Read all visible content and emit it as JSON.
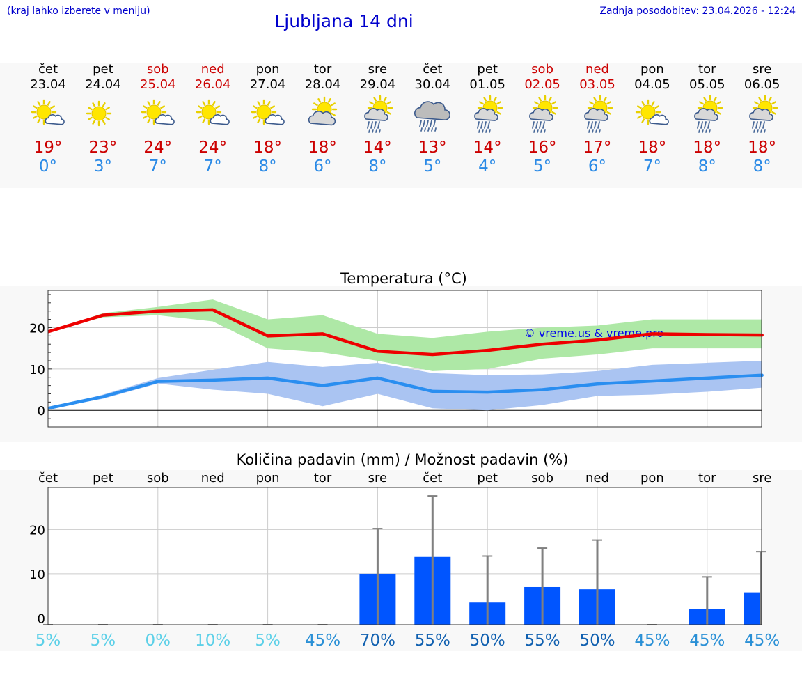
{
  "header": {
    "hint": "(kraj lahko izberete v meniju)",
    "title": "Ljubljana 14 dni",
    "updated": "Zadnja posodobitev: 23.04.2026 - 12:24"
  },
  "days": [
    {
      "name": "čet",
      "date": "23.04",
      "weekend": false,
      "icon": "sun-cloud-icon",
      "max": "19°",
      "min": "0°"
    },
    {
      "name": "pet",
      "date": "24.04",
      "weekend": false,
      "icon": "sun-icon",
      "max": "23°",
      "min": "3°"
    },
    {
      "name": "sob",
      "date": "25.04",
      "weekend": true,
      "icon": "sun-cloud-icon",
      "max": "24°",
      "min": "7°"
    },
    {
      "name": "ned",
      "date": "26.04",
      "weekend": true,
      "icon": "sun-cloud-icon",
      "max": "24°",
      "min": "7°"
    },
    {
      "name": "pon",
      "date": "27.04",
      "weekend": false,
      "icon": "sun-cloud-icon",
      "max": "18°",
      "min": "8°"
    },
    {
      "name": "tor",
      "date": "28.04",
      "weekend": false,
      "icon": "partly-cloudy-icon",
      "max": "18°",
      "min": "6°"
    },
    {
      "name": "sre",
      "date": "29.04",
      "weekend": false,
      "icon": "sun-rain-icon",
      "max": "14°",
      "min": "8°"
    },
    {
      "name": "čet",
      "date": "30.04",
      "weekend": false,
      "icon": "heavy-rain-icon",
      "max": "13°",
      "min": "5°"
    },
    {
      "name": "pet",
      "date": "01.05",
      "weekend": false,
      "icon": "sun-rain-icon",
      "max": "14°",
      "min": "4°"
    },
    {
      "name": "sob",
      "date": "02.05",
      "weekend": true,
      "icon": "sun-rain-icon",
      "max": "16°",
      "min": "5°"
    },
    {
      "name": "ned",
      "date": "03.05",
      "weekend": true,
      "icon": "sun-rain-icon",
      "max": "17°",
      "min": "6°"
    },
    {
      "name": "pon",
      "date": "04.05",
      "weekend": false,
      "icon": "sun-cloud-icon",
      "max": "18°",
      "min": "7°"
    },
    {
      "name": "tor",
      "date": "05.05",
      "weekend": false,
      "icon": "sun-rain-icon",
      "max": "18°",
      "min": "8°"
    },
    {
      "name": "sre",
      "date": "06.05",
      "weekend": false,
      "icon": "sun-rain-icon",
      "max": "18°",
      "min": "8°"
    }
  ],
  "colors": {
    "max": "#ee0000",
    "min": "#2a8ef0",
    "maxBand": "#aee8a6",
    "minBand": "#aac4f2",
    "bar": "#0055ff",
    "errbar": "#808080"
  },
  "chart_data": [
    {
      "type": "line",
      "title": "Temperatura (°C)",
      "watermark": "© vreme.us & vreme.pro",
      "x": [
        "23.04",
        "24.04",
        "25.04",
        "26.04",
        "27.04",
        "28.04",
        "29.04",
        "30.04",
        "01.05",
        "02.05",
        "03.05",
        "04.05",
        "05.05",
        "06.05"
      ],
      "ylim": [
        -4,
        29
      ],
      "yticks": [
        0,
        10,
        20
      ],
      "series": [
        {
          "name": "max",
          "values": [
            19,
            23,
            24,
            24.3,
            18,
            18.5,
            14.3,
            13.5,
            14.5,
            16,
            17,
            18.5,
            18.3,
            18.2
          ],
          "band_low": [
            19,
            22.5,
            23,
            21.5,
            15,
            14,
            12,
            9.5,
            10,
            12.5,
            13.5,
            15,
            15,
            15
          ],
          "band_high": [
            19,
            23.5,
            25,
            26.8,
            22,
            23,
            18.5,
            17.5,
            19,
            20,
            20.5,
            22,
            22,
            22
          ]
        },
        {
          "name": "min",
          "values": [
            0.5,
            3.3,
            7,
            7.3,
            7.8,
            6,
            7.8,
            4.6,
            4.4,
            5,
            6.4,
            7.1,
            7.8,
            8.5
          ],
          "band_low": [
            0.5,
            2.8,
            6.5,
            5,
            4,
            1,
            4,
            0.5,
            0,
            1.3,
            3.5,
            3.8,
            4.5,
            5.5
          ],
          "band_high": [
            0.5,
            3.8,
            7.8,
            9.8,
            11.7,
            10.5,
            11.5,
            9,
            8.5,
            8.7,
            9.5,
            11,
            11.5,
            12
          ]
        }
      ]
    },
    {
      "type": "bar",
      "title": "Količina padavin (mm) / Možnost padavin (%)",
      "categories": [
        "čet",
        "pet",
        "sob",
        "ned",
        "pon",
        "tor",
        "sre",
        "čet",
        "pet",
        "sob",
        "ned",
        "pon",
        "tor",
        "sre"
      ],
      "values": [
        0,
        0,
        0,
        0,
        0,
        0,
        10,
        13.8,
        3.5,
        7,
        6.5,
        0,
        2,
        5.8
      ],
      "err_high": [
        0,
        0,
        0,
        0,
        0,
        0,
        20.2,
        27.6,
        14,
        15.8,
        17.6,
        0,
        9.3,
        15
      ],
      "ylim": [
        -1.5,
        29.5
      ],
      "yticks": [
        0,
        10,
        20
      ],
      "probability": [
        "5%",
        "5%",
        "0%",
        "10%",
        "5%",
        "45%",
        "70%",
        "55%",
        "50%",
        "55%",
        "50%",
        "45%",
        "45%",
        "45%"
      ]
    }
  ]
}
